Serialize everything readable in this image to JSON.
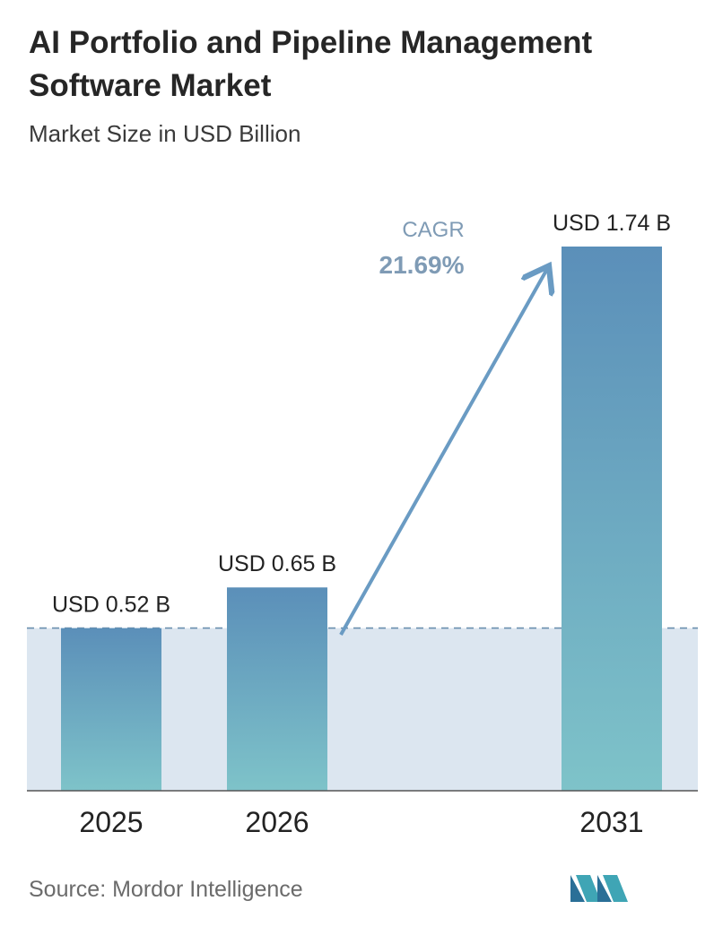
{
  "title": "AI Portfolio and Pipeline Management Software Market",
  "subtitle": "Market Size in USD Billion",
  "source": "Source: Mordor Intelligence",
  "colors": {
    "bar_top": "#5b8fb9",
    "bar_bottom": "#7ec3c9",
    "band": "#dce6f0",
    "arrow": "#6a9bc3",
    "cagr_label": "#7f9bb5"
  },
  "chart_data": {
    "type": "bar",
    "title": "AI Portfolio and Pipeline Management Software Market",
    "ylabel": "Market Size in USD Billion",
    "categories": [
      "2025",
      "2026",
      "2031"
    ],
    "values": [
      0.52,
      0.65,
      1.74
    ],
    "value_labels": [
      "USD 0.52 B",
      "USD 0.65 B",
      "USD 1.74 B"
    ],
    "ylim": [
      0,
      1.74
    ],
    "grid": false,
    "annotation": {
      "label": "CAGR",
      "value": "21.69%"
    }
  },
  "logo_icon": "mordor-intelligence-logo"
}
